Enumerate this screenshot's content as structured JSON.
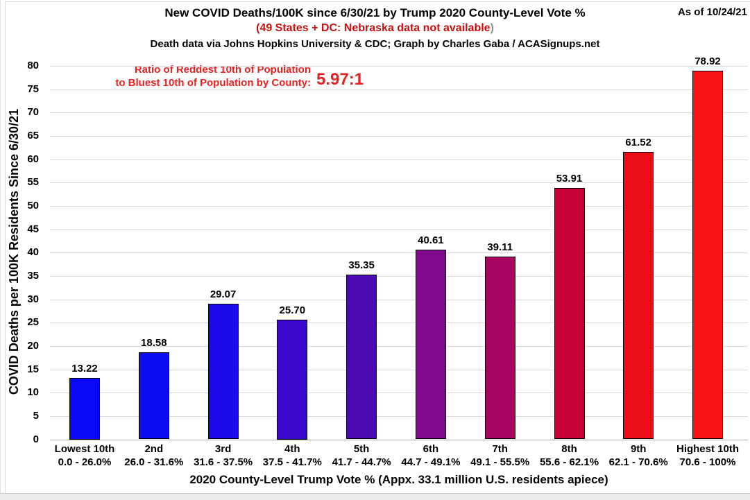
{
  "chart_data": {
    "type": "bar",
    "title": "New COVID Deaths/100K since 6/30/21 by Trump 2020 County-Level Vote %",
    "subtitle": "(49 States + DC: Nebraska data not available",
    "subtitle_close_paren": ")",
    "attribution": "Death data via Johns Hopkins University & CDC; Graph by Charles Gaba / ACASignups.net",
    "as_of": "As of 10/24/21",
    "annotation": {
      "line1": "Ratio of Reddest 10th of Population",
      "line2": "to Bluest 10th of Population by County:",
      "ratio": "5.97:1"
    },
    "categories": [
      "Lowest 10th",
      "2nd",
      "3rd",
      "4th",
      "5th",
      "6th",
      "7th",
      "8th",
      "9th",
      "Highest 10th"
    ],
    "category_ranges": [
      "0.0 - 26.0%",
      "26.0 - 31.6%",
      "31.6 - 37.5%",
      "37.5 - 41.7%",
      "41.7 - 44.7%",
      "44.7 - 49.1%",
      "49.1 - 55.5%",
      "55.6 - 62.1%",
      "62.1 - 70.6%",
      "70.6 - 100%"
    ],
    "values": [
      13.22,
      18.58,
      29.07,
      25.7,
      35.35,
      40.61,
      39.11,
      53.91,
      61.52,
      78.92
    ],
    "value_labels": [
      "13.22",
      "18.58",
      "29.07",
      "25.70",
      "35.35",
      "40.61",
      "39.11",
      "53.91",
      "61.52",
      "78.92"
    ],
    "bar_colors": [
      "#0909f7",
      "#0d0df3",
      "#1a0ae8",
      "#3807cb",
      "#4d09b2",
      "#7f0a8e",
      "#a6045e",
      "#c60239",
      "#ea0d16",
      "#fa1111"
    ],
    "xlabel": "2020 County-Level Trump Vote % (Appx. 33.1 million U.S. residents apiece)",
    "ylabel": "COVID Deaths per 100K Residents Since 6/30/21",
    "ylim": [
      0,
      80
    ],
    "ytick_step": 5,
    "grid": "horizontal",
    "legend_position": "none"
  },
  "colors": {
    "text": "#000000",
    "subtitle_red": "#c41212",
    "paren_gray": "#8f8f8f",
    "annotation_red": "#e42222",
    "gridline": "#d9d9d9",
    "axis_line": "#adadad"
  }
}
